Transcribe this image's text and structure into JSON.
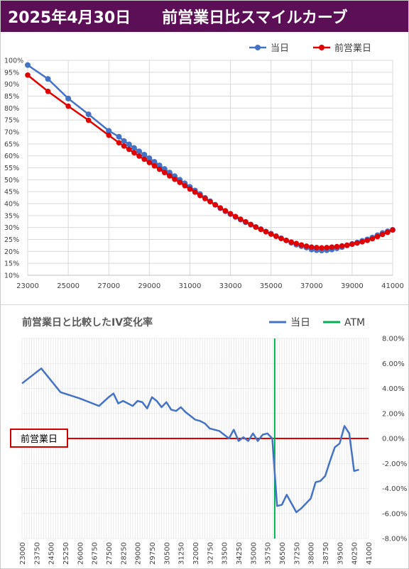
{
  "header": {
    "date": "2025年4月30日",
    "title": "前営業日比スマイルカーブ"
  },
  "colors": {
    "banner": "#5c0f57",
    "today": "#4472c4",
    "previous": "#e00000",
    "iv_line": "#4472c4",
    "atm": "#00b050"
  },
  "chart_data": [
    {
      "type": "line",
      "title": "",
      "legend_position": "top-right",
      "grid": true,
      "xlim": [
        23000,
        41000
      ],
      "ylim": [
        0.1,
        1.0
      ],
      "x_ticks": [
        "23000",
        "25000",
        "27000",
        "29000",
        "31000",
        "33000",
        "35000",
        "37000",
        "39000",
        "41000"
      ],
      "y_ticks": [
        "10%",
        "15%",
        "20%",
        "25%",
        "30%",
        "35%",
        "40%",
        "45%",
        "50%",
        "55%",
        "60%",
        "65%",
        "70%",
        "75%",
        "80%",
        "85%",
        "90%",
        "95%",
        "100%"
      ],
      "series": [
        {
          "name": "当日",
          "color": "#4472c4",
          "x": [
            23000,
            24000,
            25000,
            26000,
            27000,
            27500,
            27750,
            28000,
            28250,
            28500,
            28750,
            29000,
            29250,
            29500,
            29750,
            30000,
            30250,
            30500,
            30750,
            31000,
            31250,
            31500,
            31750,
            32000,
            32250,
            32500,
            32750,
            33000,
            33250,
            33500,
            33750,
            34000,
            34250,
            34500,
            34750,
            35000,
            35250,
            35500,
            35750,
            36000,
            36250,
            36500,
            36750,
            37000,
            37250,
            37500,
            37750,
            38000,
            38250,
            38500,
            38750,
            39000,
            39250,
            39500,
            39750,
            40000,
            40250,
            40500,
            40750,
            41000
          ],
          "y": [
            0.98,
            0.922,
            0.84,
            0.774,
            0.705,
            0.68,
            0.662,
            0.648,
            0.633,
            0.619,
            0.605,
            0.59,
            0.575,
            0.56,
            0.545,
            0.53,
            0.515,
            0.5,
            0.485,
            0.47,
            0.455,
            0.44,
            0.424,
            0.41,
            0.395,
            0.381,
            0.368,
            0.356,
            0.344,
            0.333,
            0.322,
            0.312,
            0.302,
            0.293,
            0.283,
            0.274,
            0.264,
            0.255,
            0.246,
            0.236,
            0.228,
            0.222,
            0.216,
            0.208,
            0.205,
            0.204,
            0.205,
            0.208,
            0.213,
            0.218,
            0.225,
            0.231,
            0.237,
            0.244,
            0.25,
            0.258,
            0.268,
            0.277,
            0.284,
            0.29
          ]
        },
        {
          "name": "前営業日",
          "color": "#e00000",
          "x": [
            23000,
            24000,
            25000,
            26000,
            27000,
            27500,
            27750,
            28000,
            28250,
            28500,
            28750,
            29000,
            29250,
            29500,
            29750,
            30000,
            30250,
            30500,
            30750,
            31000,
            31250,
            31500,
            31750,
            32000,
            32250,
            32500,
            32750,
            33000,
            33250,
            33500,
            33750,
            34000,
            34250,
            34500,
            34750,
            35000,
            35250,
            35500,
            35750,
            36000,
            36250,
            36500,
            36750,
            37000,
            37250,
            37500,
            37750,
            38000,
            38250,
            38500,
            38750,
            39000,
            39250,
            39500,
            39750,
            40000,
            40250,
            40500,
            40750,
            41000
          ],
          "y": [
            0.938,
            0.87,
            0.808,
            0.749,
            0.686,
            0.655,
            0.641,
            0.627,
            0.613,
            0.599,
            0.586,
            0.572,
            0.558,
            0.544,
            0.53,
            0.516,
            0.502,
            0.489,
            0.475,
            0.461,
            0.448,
            0.434,
            0.421,
            0.408,
            0.395,
            0.382,
            0.37,
            0.358,
            0.346,
            0.335,
            0.324,
            0.313,
            0.302,
            0.292,
            0.282,
            0.272,
            0.263,
            0.254,
            0.246,
            0.239,
            0.233,
            0.227,
            0.222,
            0.218,
            0.216,
            0.215,
            0.216,
            0.218,
            0.22,
            0.223,
            0.226,
            0.23,
            0.235,
            0.24,
            0.246,
            0.253,
            0.262,
            0.271,
            0.28,
            0.29
          ]
        }
      ]
    },
    {
      "type": "line",
      "title": "前営業日と比較したIV変化率",
      "legend_position": "top-right",
      "grid": true,
      "ylim": [
        -0.08,
        0.08
      ],
      "y_ticks": [
        "8.00%",
        "6.00%",
        "4.00%",
        "2.00%",
        "0.00%",
        "-2.00%",
        "-4.00%",
        "-6.00%",
        "-8.00%"
      ],
      "x_ticks": [
        "23000",
        "23750",
        "24500",
        "25250",
        "26000",
        "26750",
        "27500",
        "28250",
        "29000",
        "29750",
        "30500",
        "31250",
        "32000",
        "32750",
        "33500",
        "34250",
        "35000",
        "35750",
        "36500",
        "37250",
        "38000",
        "38750",
        "39500",
        "40250",
        "41000"
      ],
      "reference_label": "前営業日",
      "atm_strike": 36125,
      "series": [
        {
          "name": "当日",
          "color": "#4472c4",
          "x": [
            23000,
            24000,
            25000,
            26000,
            27000,
            27500,
            27750,
            28000,
            28250,
            28500,
            28750,
            29000,
            29250,
            29500,
            29750,
            30000,
            30250,
            30500,
            30750,
            31000,
            31250,
            31500,
            31750,
            32000,
            32250,
            32500,
            32750,
            33000,
            33250,
            33500,
            33750,
            34000,
            34250,
            34500,
            34750,
            35000,
            35250,
            35500,
            35750,
            36000,
            36250,
            36500,
            36750,
            37000,
            37250,
            37500,
            37750,
            38000,
            38250,
            38500,
            38750,
            39000,
            39250,
            39500,
            39750,
            40000,
            40250,
            40500
          ],
          "y": [
            0.044,
            0.056,
            0.037,
            0.032,
            0.026,
            0.033,
            0.036,
            0.028,
            0.03,
            0.028,
            0.026,
            0.03,
            0.029,
            0.024,
            0.033,
            0.03,
            0.025,
            0.029,
            0.023,
            0.022,
            0.025,
            0.021,
            0.018,
            0.015,
            0.014,
            0.012,
            0.008,
            0.007,
            0.006,
            0.003,
            0.0,
            0.007,
            -0.002,
            0.001,
            -0.002,
            0.004,
            -0.002,
            0.003,
            0.004,
            0.0,
            -0.054,
            -0.053,
            -0.045,
            -0.052,
            -0.059,
            -0.056,
            -0.052,
            -0.048,
            -0.035,
            -0.034,
            -0.03,
            -0.018,
            -0.007,
            -0.004,
            0.01,
            0.004,
            -0.026,
            -0.025
          ]
        }
      ]
    }
  ]
}
